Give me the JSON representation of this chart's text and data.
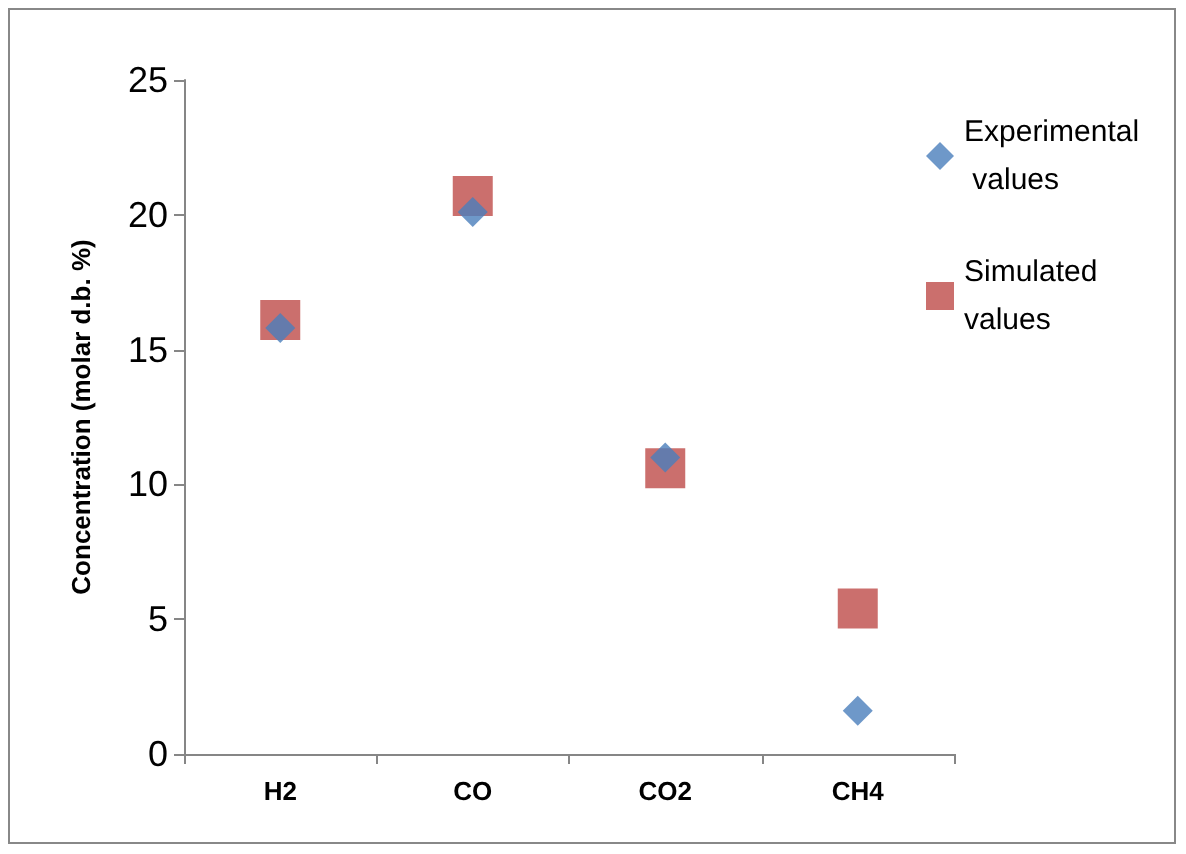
{
  "chart_data": {
    "type": "scatter",
    "ylabel": "Concentration (molar d.b. %)",
    "categories": [
      "H2",
      "CO",
      "CO2",
      "CH4"
    ],
    "series": [
      {
        "name": "Experimental values",
        "color": "#4a7ebb",
        "marker": "diamond",
        "values": [
          15.8,
          20.1,
          11.0,
          1.6
        ]
      },
      {
        "name": "Simulated values",
        "color": "#be4b48",
        "marker": "square",
        "values": [
          16.1,
          20.7,
          10.6,
          5.4
        ]
      }
    ],
    "ylim": [
      0,
      25
    ],
    "yticks": [
      0,
      5,
      10,
      15,
      20,
      25
    ],
    "grid": false,
    "legend": "top right"
  }
}
